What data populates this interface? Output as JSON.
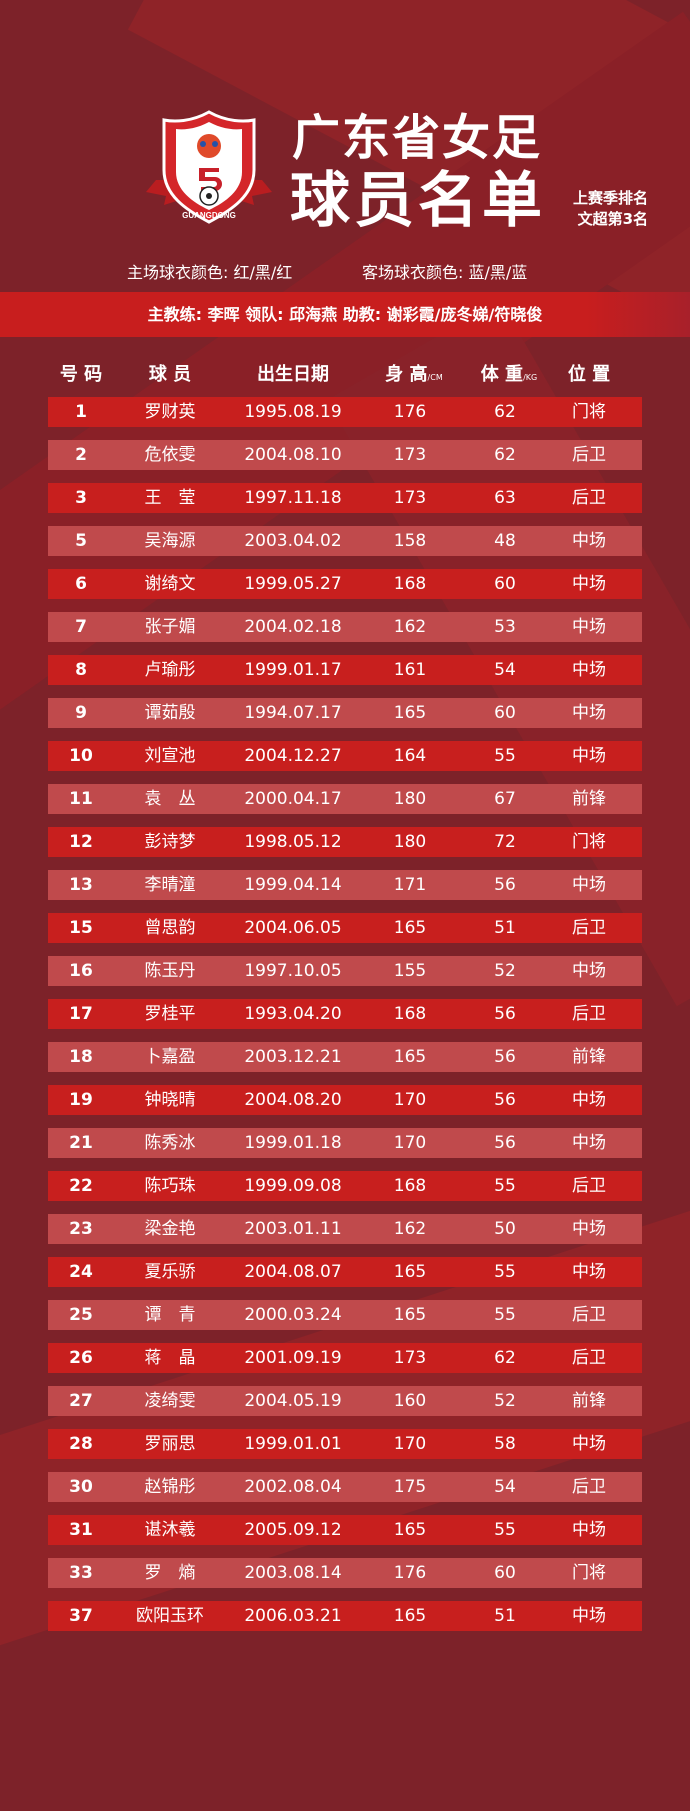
{
  "header": {
    "title_line1": "广东省女足",
    "title_line2": "球员名单",
    "last_season_line1": "上赛季排名",
    "last_season_line2": "文超第3名",
    "logo_text": "GUANGDONG"
  },
  "kits": {
    "home": "主场球衣颜色: 红/黑/红",
    "away": "客场球衣颜色: 蓝/黑/蓝"
  },
  "staff": "主教练: 李晖  领队: 邱海燕  助教: 谢彩霞/庞冬娣/符晓俊",
  "columns": {
    "number": "号 码",
    "player": "球 员",
    "birth": "出生日期",
    "height": "身 高",
    "height_unit": "/CM",
    "weight": "体 重",
    "weight_unit": "/KG",
    "position": "位 置"
  },
  "colors": {
    "background": "#7d2229",
    "row_odd": "#c81f1e",
    "row_even": "#c04a4c"
  },
  "players": [
    [
      "1",
      "罗财英",
      "1995.08.19",
      "176",
      "62",
      "门将"
    ],
    [
      "2",
      "危依雯",
      "2004.08.10",
      "173",
      "62",
      "后卫"
    ],
    [
      "3",
      "王　莹",
      "1997.11.18",
      "173",
      "63",
      "后卫"
    ],
    [
      "5",
      "吴海源",
      "2003.04.02",
      "158",
      "48",
      "中场"
    ],
    [
      "6",
      "谢绮文",
      "1999.05.27",
      "168",
      "60",
      "中场"
    ],
    [
      "7",
      "张子媚",
      "2004.02.18",
      "162",
      "53",
      "中场"
    ],
    [
      "8",
      "卢瑜彤",
      "1999.01.17",
      "161",
      "54",
      "中场"
    ],
    [
      "9",
      "谭茹殷",
      "1994.07.17",
      "165",
      "60",
      "中场"
    ],
    [
      "10",
      "刘宣池",
      "2004.12.27",
      "164",
      "55",
      "中场"
    ],
    [
      "11",
      "袁　丛",
      "2000.04.17",
      "180",
      "67",
      "前锋"
    ],
    [
      "12",
      "彭诗梦",
      "1998.05.12",
      "180",
      "72",
      "门将"
    ],
    [
      "13",
      "李晴潼",
      "1999.04.14",
      "171",
      "56",
      "中场"
    ],
    [
      "15",
      "曾思韵",
      "2004.06.05",
      "165",
      "51",
      "后卫"
    ],
    [
      "16",
      "陈玉丹",
      "1997.10.05",
      "155",
      "52",
      "中场"
    ],
    [
      "17",
      "罗桂平",
      "1993.04.20",
      "168",
      "56",
      "后卫"
    ],
    [
      "18",
      "卜嘉盈",
      "2003.12.21",
      "165",
      "56",
      "前锋"
    ],
    [
      "19",
      "钟晓晴",
      "2004.08.20",
      "170",
      "56",
      "中场"
    ],
    [
      "21",
      "陈秀冰",
      "1999.01.18",
      "170",
      "56",
      "中场"
    ],
    [
      "22",
      "陈巧珠",
      "1999.09.08",
      "168",
      "55",
      "后卫"
    ],
    [
      "23",
      "梁金艳",
      "2003.01.11",
      "162",
      "50",
      "中场"
    ],
    [
      "24",
      "夏乐骄",
      "2004.08.07",
      "165",
      "55",
      "中场"
    ],
    [
      "25",
      "谭　青",
      "2000.03.24",
      "165",
      "55",
      "后卫"
    ],
    [
      "26",
      "蒋　晶",
      "2001.09.19",
      "173",
      "62",
      "后卫"
    ],
    [
      "27",
      "凌绮雯",
      "2004.05.19",
      "160",
      "52",
      "前锋"
    ],
    [
      "28",
      "罗丽思",
      "1999.01.01",
      "170",
      "58",
      "中场"
    ],
    [
      "30",
      "赵锦彤",
      "2002.08.04",
      "175",
      "54",
      "后卫"
    ],
    [
      "31",
      "谌沐羲",
      "2005.09.12",
      "165",
      "55",
      "中场"
    ],
    [
      "33",
      "罗　熵",
      "2003.08.14",
      "176",
      "60",
      "门将"
    ],
    [
      "37",
      "欧阳玉环",
      "2006.03.21",
      "165",
      "51",
      "中场"
    ]
  ]
}
